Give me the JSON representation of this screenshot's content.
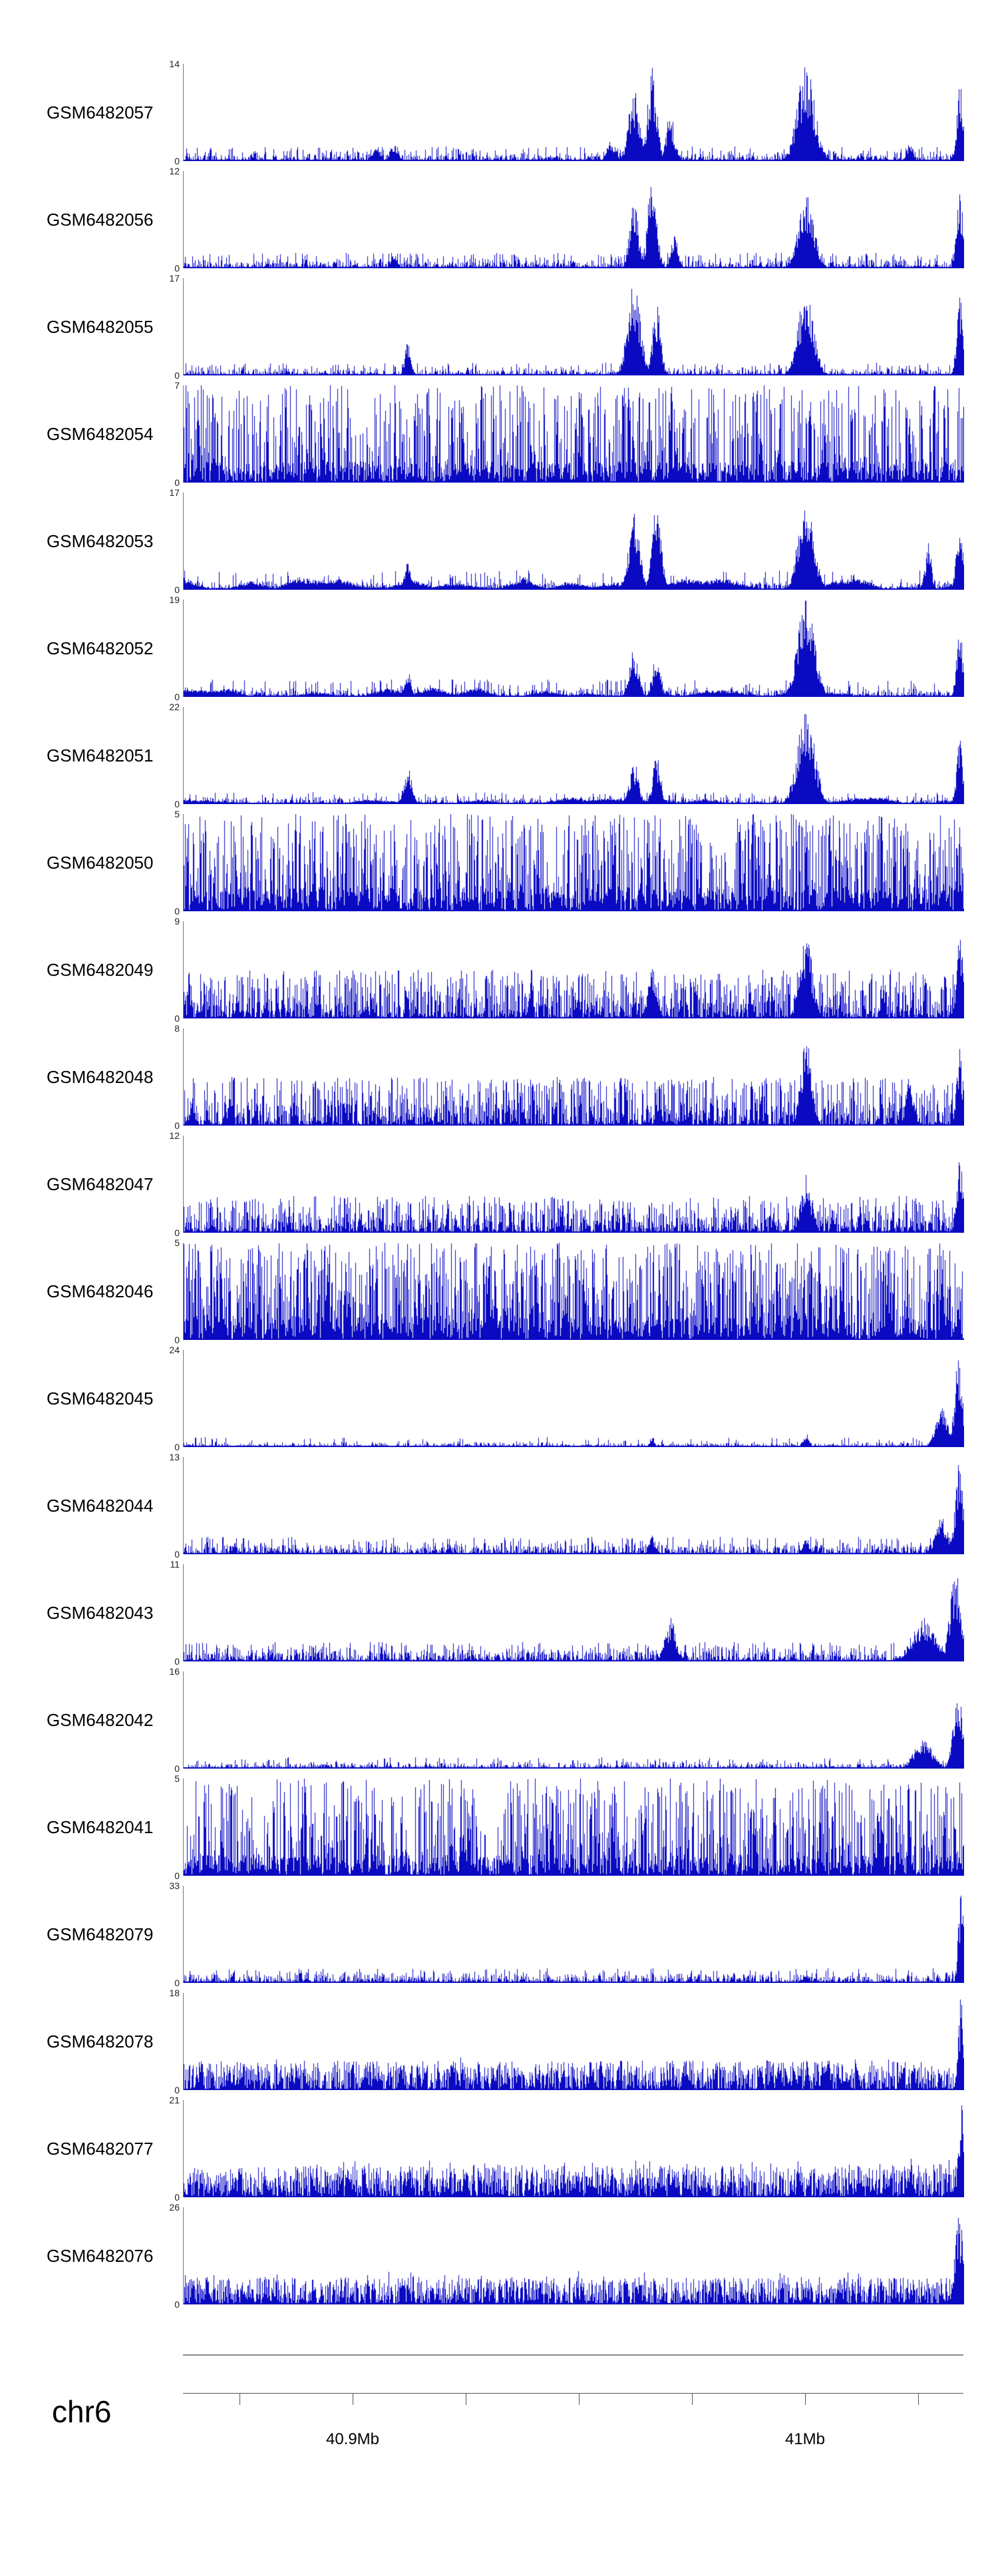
{
  "page": {
    "background": "#ffffff"
  },
  "chart_data": {
    "type": "area",
    "description": "Genomic signal coverage tracks (GEO samples) over chr6",
    "chromosome": "chr6",
    "signal_color": "#0a0ac2",
    "y_min_label": "0",
    "x_axis": {
      "start_mb": 40.8625,
      "end_mb": 41.035,
      "tick_interval_mb": 0.025,
      "ticks_mb": [
        40.875,
        40.9,
        40.925,
        40.95,
        40.975,
        41.0,
        41.025
      ],
      "tick_labels": [
        {
          "mb": 40.9,
          "label": "40.9Mb"
        },
        {
          "mb": 41.0,
          "label": "41Mb"
        }
      ]
    },
    "tracks": [
      {
        "label": "GSM6482057",
        "ymax": 14,
        "profile": "sparse",
        "base": 0.1,
        "spikeProb": 0.2,
        "spikeAmp": 0.15,
        "peaks": [
          {
            "mb": 40.905,
            "kb": 1.0,
            "h": 0.16
          },
          {
            "mb": 40.909,
            "kb": 0.9,
            "h": 0.2
          },
          {
            "mb": 40.957,
            "kb": 1.0,
            "h": 0.22
          },
          {
            "mb": 40.962,
            "kb": 1.2,
            "h": 0.75
          },
          {
            "mb": 40.966,
            "kb": 1.0,
            "h": 0.98
          },
          {
            "mb": 40.97,
            "kb": 0.9,
            "h": 0.5
          },
          {
            "mb": 41.0,
            "kb": 1.9,
            "h": 1.0
          },
          {
            "mb": 41.023,
            "kb": 0.7,
            "h": 0.2
          },
          {
            "mb": 41.034,
            "kb": 0.7,
            "h": 0.85
          }
        ]
      },
      {
        "label": "GSM6482056",
        "ymax": 12,
        "profile": "sparse",
        "base": 0.1,
        "spikeProb": 0.2,
        "spikeAmp": 0.16,
        "peaks": [
          {
            "mb": 40.909,
            "kb": 0.7,
            "h": 0.15
          },
          {
            "mb": 40.962,
            "kb": 1.0,
            "h": 0.7
          },
          {
            "mb": 40.966,
            "kb": 1.0,
            "h": 0.95
          },
          {
            "mb": 40.971,
            "kb": 0.7,
            "h": 0.4
          },
          {
            "mb": 41.0,
            "kb": 1.7,
            "h": 0.8
          },
          {
            "mb": 41.034,
            "kb": 0.7,
            "h": 0.8
          }
        ]
      },
      {
        "label": "GSM6482055",
        "ymax": 17,
        "profile": "sparse",
        "base": 0.08,
        "spikeProb": 0.18,
        "spikeAmp": 0.13,
        "peaks": [
          {
            "mb": 40.912,
            "kb": 0.7,
            "h": 0.35
          },
          {
            "mb": 40.962,
            "kb": 1.4,
            "h": 1.0
          },
          {
            "mb": 40.967,
            "kb": 0.9,
            "h": 0.75
          },
          {
            "mb": 41.0,
            "kb": 1.7,
            "h": 0.92
          },
          {
            "mb": 41.034,
            "kb": 0.7,
            "h": 0.85
          }
        ]
      },
      {
        "label": "GSM6482054",
        "ymax": 7,
        "profile": "dense",
        "tallProb": 0.45,
        "tallMin": 0.22,
        "peaks": []
      },
      {
        "label": "GSM6482053",
        "ymax": 17,
        "profile": "sparse",
        "base": 0.1,
        "smooth": 0.14,
        "spikeProb": 0.12,
        "spikeAmp": 0.2,
        "peaks": [
          {
            "mb": 40.912,
            "kb": 0.7,
            "h": 0.3
          },
          {
            "mb": 40.962,
            "kb": 1.2,
            "h": 0.85
          },
          {
            "mb": 40.967,
            "kb": 1.0,
            "h": 0.95
          },
          {
            "mb": 41.0,
            "kb": 1.7,
            "h": 0.95
          },
          {
            "mb": 41.027,
            "kb": 0.7,
            "h": 0.5
          },
          {
            "mb": 41.034,
            "kb": 0.7,
            "h": 0.8
          }
        ]
      },
      {
        "label": "GSM6482052",
        "ymax": 19,
        "profile": "sparse",
        "base": 0.1,
        "smooth": 0.12,
        "spikeProb": 0.12,
        "spikeAmp": 0.18,
        "peaks": [
          {
            "mb": 40.912,
            "kb": 0.7,
            "h": 0.3
          },
          {
            "mb": 40.962,
            "kb": 1.0,
            "h": 0.5
          },
          {
            "mb": 40.967,
            "kb": 0.9,
            "h": 0.45
          },
          {
            "mb": 41.0,
            "kb": 1.9,
            "h": 1.0
          },
          {
            "mb": 41.034,
            "kb": 0.7,
            "h": 0.75
          }
        ]
      },
      {
        "label": "GSM6482051",
        "ymax": 22,
        "profile": "sparse",
        "base": 0.08,
        "smooth": 0.08,
        "spikeProb": 0.15,
        "spikeAmp": 0.12,
        "peaks": [
          {
            "mb": 40.912,
            "kb": 0.9,
            "h": 0.38
          },
          {
            "mb": 40.962,
            "kb": 1.0,
            "h": 0.45
          },
          {
            "mb": 40.967,
            "kb": 0.9,
            "h": 0.5
          },
          {
            "mb": 41.0,
            "kb": 1.9,
            "h": 1.0
          },
          {
            "mb": 41.034,
            "kb": 0.7,
            "h": 0.7
          }
        ]
      },
      {
        "label": "GSM6482050",
        "ymax": 5,
        "profile": "dense",
        "tallProb": 0.5,
        "tallMin": 0.25,
        "peaks": []
      },
      {
        "label": "GSM6482049",
        "ymax": 9,
        "profile": "sparse",
        "base": 0.25,
        "spikeProb": 0.45,
        "spikeAmp": 0.5,
        "peaks": [
          {
            "mb": 40.966,
            "kb": 1.0,
            "h": 0.55
          },
          {
            "mb": 41.0,
            "kb": 1.4,
            "h": 0.88
          },
          {
            "mb": 41.034,
            "kb": 0.7,
            "h": 0.9
          }
        ]
      },
      {
        "label": "GSM6482048",
        "ymax": 8,
        "profile": "sparse",
        "base": 0.25,
        "spikeProb": 0.45,
        "spikeAmp": 0.5,
        "peaks": [
          {
            "mb": 41.0,
            "kb": 1.2,
            "h": 0.95
          },
          {
            "mb": 41.023,
            "kb": 0.9,
            "h": 0.5
          },
          {
            "mb": 41.034,
            "kb": 0.7,
            "h": 0.8
          }
        ]
      },
      {
        "label": "GSM6482047",
        "ymax": 12,
        "profile": "sparse",
        "base": 0.2,
        "spikeProb": 0.4,
        "spikeAmp": 0.38,
        "peaks": [
          {
            "mb": 41.0,
            "kb": 1.2,
            "h": 0.65
          },
          {
            "mb": 41.034,
            "kb": 0.7,
            "h": 0.9
          }
        ]
      },
      {
        "label": "GSM6482046",
        "ymax": 5,
        "profile": "dense",
        "tallProb": 0.55,
        "tallMin": 0.25,
        "peaks": []
      },
      {
        "label": "GSM6482045",
        "ymax": 24,
        "profile": "sparse",
        "base": 0.06,
        "spikeProb": 0.08,
        "spikeAmp": 0.1,
        "peaks": [
          {
            "mb": 40.966,
            "kb": 0.5,
            "h": 0.12
          },
          {
            "mb": 41.0,
            "kb": 0.7,
            "h": 0.15
          },
          {
            "mb": 41.03,
            "kb": 1.4,
            "h": 0.4
          },
          {
            "mb": 41.0338,
            "kb": 0.9,
            "h": 0.95
          }
        ]
      },
      {
        "label": "GSM6482044",
        "ymax": 13,
        "profile": "sparse",
        "base": 0.12,
        "spikeProb": 0.2,
        "spikeAmp": 0.18,
        "peaks": [
          {
            "mb": 40.966,
            "kb": 0.7,
            "h": 0.2
          },
          {
            "mb": 41.0,
            "kb": 0.7,
            "h": 0.2
          },
          {
            "mb": 41.03,
            "kb": 1.4,
            "h": 0.4
          },
          {
            "mb": 41.0338,
            "kb": 0.9,
            "h": 0.95
          }
        ]
      },
      {
        "label": "GSM6482043",
        "ymax": 11,
        "profile": "sparse",
        "base": 0.14,
        "spikeProb": 0.25,
        "spikeAmp": 0.2,
        "peaks": [
          {
            "mb": 40.97,
            "kb": 1.2,
            "h": 0.45
          },
          {
            "mb": 41.026,
            "kb": 2.6,
            "h": 0.45
          },
          {
            "mb": 41.033,
            "kb": 1.2,
            "h": 0.95
          }
        ]
      },
      {
        "label": "GSM6482042",
        "ymax": 16,
        "profile": "sparse",
        "base": 0.08,
        "spikeProb": 0.1,
        "spikeAmp": 0.12,
        "peaks": [
          {
            "mb": 41.026,
            "kb": 2.1,
            "h": 0.3
          },
          {
            "mb": 41.0336,
            "kb": 1.0,
            "h": 0.92
          }
        ]
      },
      {
        "label": "GSM6482041",
        "ymax": 5,
        "profile": "dense",
        "tallProb": 0.48,
        "tallMin": 0.22,
        "peaks": []
      },
      {
        "label": "GSM6482079",
        "ymax": 33,
        "profile": "sparse",
        "base": 0.12,
        "spikeProb": 0.15,
        "spikeAmp": 0.15,
        "peaks": [
          {
            "mb": 41.0,
            "kb": 0.7,
            "h": 0.12
          },
          {
            "mb": 41.0343,
            "kb": 0.6,
            "h": 1.0
          }
        ]
      },
      {
        "label": "GSM6482078",
        "ymax": 18,
        "profile": "sparse",
        "base": 0.35,
        "spikeProb": 0.5,
        "spikeAmp": 0.3,
        "peaks": [
          {
            "mb": 41.0343,
            "kb": 0.6,
            "h": 1.0
          }
        ]
      },
      {
        "label": "GSM6482077",
        "ymax": 21,
        "profile": "sparse",
        "base": 0.4,
        "spikeProb": 0.5,
        "spikeAmp": 0.32,
        "peaks": [
          {
            "mb": 41.023,
            "kb": 0.7,
            "h": 0.3
          },
          {
            "mb": 41.0343,
            "kb": 0.6,
            "h": 1.0
          }
        ]
      },
      {
        "label": "GSM6482076",
        "ymax": 26,
        "profile": "sparse",
        "base": 0.35,
        "spikeProb": 0.45,
        "spikeAmp": 0.28,
        "peaks": [
          {
            "mb": 41.0338,
            "kb": 0.9,
            "h": 1.0
          }
        ]
      }
    ]
  }
}
